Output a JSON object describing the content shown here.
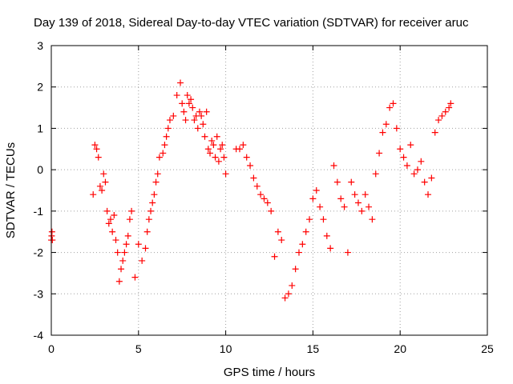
{
  "chart_data": {
    "type": "scatter",
    "title": "Day 139 of 2018, Sidereal Day-to-day VTEC variation (SDTVAR) for receiver aruc",
    "xlabel": "GPS time / hours",
    "ylabel": "SDTVAR / TECUs",
    "xlim": [
      0,
      25
    ],
    "ylim": [
      -4,
      3
    ],
    "xticks": [
      "0",
      "5",
      "10",
      "15",
      "20",
      "25"
    ],
    "yticks": [
      "-4",
      "-3",
      "-2",
      "-1",
      "0",
      "1",
      "2",
      "3"
    ],
    "grid": true,
    "marker": "+",
    "marker_color": "#ff0000",
    "series": [
      {
        "name": "SDTVAR",
        "x": [
          0.0,
          0.02,
          0.04,
          0.06,
          2.4,
          2.5,
          2.6,
          2.7,
          2.8,
          2.9,
          3.0,
          3.1,
          3.2,
          3.3,
          3.4,
          3.5,
          3.6,
          3.7,
          3.8,
          3.9,
          4.0,
          4.1,
          4.2,
          4.3,
          4.4,
          4.5,
          4.6,
          4.8,
          5.0,
          5.2,
          5.4,
          5.5,
          5.6,
          5.7,
          5.8,
          5.9,
          6.0,
          6.1,
          6.2,
          6.4,
          6.5,
          6.6,
          6.7,
          6.8,
          7.0,
          7.2,
          7.4,
          7.5,
          7.6,
          7.7,
          7.8,
          7.9,
          8.0,
          8.1,
          8.2,
          8.3,
          8.4,
          8.5,
          8.6,
          8.7,
          8.8,
          8.9,
          9.0,
          9.1,
          9.2,
          9.3,
          9.4,
          9.5,
          9.6,
          9.7,
          9.8,
          9.9,
          10.0,
          10.6,
          10.8,
          11.0,
          11.2,
          11.4,
          11.6,
          11.8,
          12.0,
          12.2,
          12.4,
          12.6,
          12.8,
          13.0,
          13.2,
          13.4,
          13.6,
          13.8,
          14.0,
          14.2,
          14.4,
          14.6,
          14.8,
          15.0,
          15.2,
          15.4,
          15.6,
          15.8,
          16.0,
          16.2,
          16.4,
          16.6,
          16.8,
          17.0,
          17.2,
          17.4,
          17.6,
          17.8,
          18.0,
          18.2,
          18.4,
          18.6,
          18.8,
          19.0,
          19.2,
          19.4,
          19.6,
          19.8,
          20.0,
          20.2,
          20.4,
          20.6,
          20.8,
          21.0,
          21.2,
          21.4,
          21.6,
          21.8,
          22.0,
          22.2,
          22.4,
          22.6,
          22.8,
          22.9
        ],
        "y": [
          -1.7,
          -1.6,
          -1.5,
          -1.7,
          -0.6,
          0.6,
          0.5,
          0.3,
          -0.4,
          -0.5,
          -0.1,
          -0.3,
          -1.0,
          -1.3,
          -1.2,
          -1.5,
          -1.1,
          -1.7,
          -2.0,
          -2.7,
          -2.4,
          -2.2,
          -2.0,
          -1.8,
          -1.6,
          -1.2,
          -1.0,
          -2.6,
          -1.8,
          -2.2,
          -1.9,
          -1.5,
          -1.2,
          -1.0,
          -0.8,
          -0.6,
          -0.3,
          -0.1,
          0.3,
          0.4,
          0.6,
          0.8,
          1.0,
          1.2,
          1.3,
          1.8,
          2.1,
          1.6,
          1.4,
          1.2,
          1.8,
          1.6,
          1.7,
          1.5,
          1.2,
          1.3,
          1.0,
          1.4,
          1.3,
          1.1,
          0.8,
          1.4,
          0.5,
          0.4,
          0.7,
          0.6,
          0.3,
          0.8,
          0.2,
          0.5,
          0.6,
          0.3,
          -0.1,
          0.5,
          0.5,
          0.6,
          0.3,
          0.1,
          -0.2,
          -0.4,
          -0.6,
          -0.7,
          -0.8,
          -1.0,
          -2.1,
          -1.5,
          -1.7,
          -3.1,
          -3.0,
          -2.8,
          -2.4,
          -2.0,
          -1.8,
          -1.5,
          -1.2,
          -0.7,
          -0.5,
          -0.9,
          -1.2,
          -1.6,
          -1.9,
          0.1,
          -0.3,
          -0.7,
          -0.9,
          -2.0,
          -0.3,
          -0.6,
          -0.8,
          -1.0,
          -0.6,
          -0.9,
          -1.2,
          -0.1,
          0.4,
          0.9,
          1.1,
          1.5,
          1.6,
          1.0,
          0.5,
          0.3,
          0.1,
          0.6,
          -0.1,
          0.0,
          0.2,
          -0.3,
          -0.6,
          -0.2,
          0.9,
          1.2,
          1.3,
          1.4,
          1.5,
          1.6
        ]
      }
    ]
  }
}
